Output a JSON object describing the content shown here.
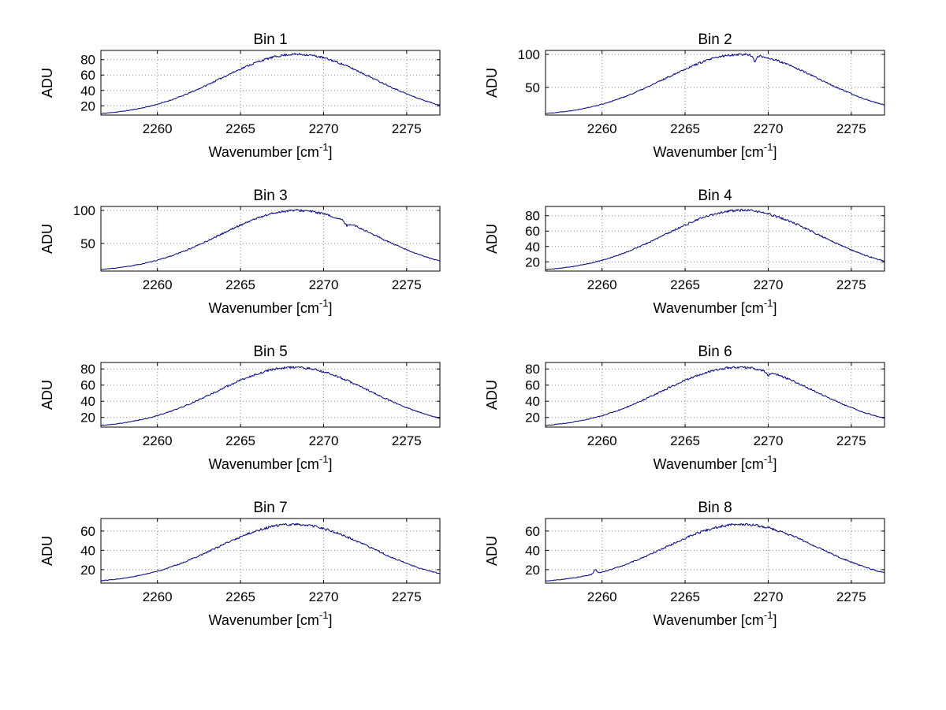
{
  "figure": {
    "background": "#ffffff"
  },
  "labels": {
    "ylabel": "ADU",
    "xlabel_base": "Wavenumber [cm",
    "xlabel_exp": "-1",
    "xlabel_end": "]"
  },
  "style": {
    "curve_color": "#00007f",
    "grid_color": "#888888",
    "axis_color": "#000000",
    "background": "#ffffff"
  },
  "chart_data": [
    {
      "type": "line",
      "title": "Bin 1",
      "xlabel": "Wavenumber [cm^-1]",
      "ylabel": "ADU",
      "x_range": [
        2256.6,
        2277.0
      ],
      "x_ticks": [
        2260,
        2265,
        2270,
        2275
      ],
      "y_ticks": [
        20,
        40,
        60,
        80
      ],
      "ylim": [
        8,
        92
      ],
      "grid": true,
      "curve": {
        "model": "gaussian",
        "center": 2268.4,
        "sigma": 4.6,
        "amplitude": 80,
        "baseline": 7,
        "noise": 1.5,
        "seed": 11
      },
      "spikes": []
    },
    {
      "type": "line",
      "title": "Bin 2",
      "xlabel": "Wavenumber [cm^-1]",
      "ylabel": "ADU",
      "x_range": [
        2256.6,
        2277.0
      ],
      "x_ticks": [
        2260,
        2265,
        2270,
        2275
      ],
      "y_ticks": [
        50,
        100
      ],
      "ylim": [
        8,
        106
      ],
      "grid": true,
      "curve": {
        "model": "gaussian",
        "center": 2268.4,
        "sigma": 4.6,
        "amplitude": 93,
        "baseline": 7,
        "noise": 1.8,
        "seed": 22
      },
      "spikes": [
        {
          "x": 2269.2,
          "amp": -9
        }
      ]
    },
    {
      "type": "line",
      "title": "Bin 3",
      "xlabel": "Wavenumber [cm^-1]",
      "ylabel": "ADU",
      "x_range": [
        2256.6,
        2277.0
      ],
      "x_ticks": [
        2260,
        2265,
        2270,
        2275
      ],
      "y_ticks": [
        50,
        100
      ],
      "ylim": [
        8,
        106
      ],
      "grid": true,
      "curve": {
        "model": "gaussian",
        "center": 2268.4,
        "sigma": 4.6,
        "amplitude": 93,
        "baseline": 7,
        "noise": 1.8,
        "seed": 33
      },
      "spikes": [
        {
          "x": 2271.4,
          "amp": -5
        }
      ]
    },
    {
      "type": "line",
      "title": "Bin 4",
      "xlabel": "Wavenumber [cm^-1]",
      "ylabel": "ADU",
      "x_range": [
        2256.6,
        2277.0
      ],
      "x_ticks": [
        2260,
        2265,
        2270,
        2275
      ],
      "y_ticks": [
        20,
        40,
        60,
        80
      ],
      "ylim": [
        8,
        92
      ],
      "grid": true,
      "curve": {
        "model": "gaussian",
        "center": 2268.4,
        "sigma": 4.6,
        "amplitude": 80,
        "baseline": 7,
        "noise": 1.6,
        "seed": 44
      },
      "spikes": []
    },
    {
      "type": "line",
      "title": "Bin 5",
      "xlabel": "Wavenumber [cm^-1]",
      "ylabel": "ADU",
      "x_range": [
        2256.6,
        2277.0
      ],
      "x_ticks": [
        2260,
        2265,
        2270,
        2275
      ],
      "y_ticks": [
        20,
        40,
        60,
        80
      ],
      "ylim": [
        8,
        88
      ],
      "grid": true,
      "curve": {
        "model": "gaussian",
        "center": 2268.2,
        "sigma": 4.6,
        "amplitude": 75,
        "baseline": 7,
        "noise": 1.5,
        "seed": 55
      },
      "spikes": []
    },
    {
      "type": "line",
      "title": "Bin 6",
      "xlabel": "Wavenumber [cm^-1]",
      "ylabel": "ADU",
      "x_range": [
        2256.6,
        2277.0
      ],
      "x_ticks": [
        2260,
        2265,
        2270,
        2275
      ],
      "y_ticks": [
        20,
        40,
        60,
        80
      ],
      "ylim": [
        8,
        88
      ],
      "grid": true,
      "curve": {
        "model": "gaussian",
        "center": 2268.2,
        "sigma": 4.6,
        "amplitude": 75,
        "baseline": 7,
        "noise": 1.5,
        "seed": 66
      },
      "spikes": [
        {
          "x": 2270.0,
          "amp": -4
        }
      ]
    },
    {
      "type": "line",
      "title": "Bin 7",
      "xlabel": "Wavenumber [cm^-1]",
      "ylabel": "ADU",
      "x_range": [
        2256.6,
        2277.0
      ],
      "x_ticks": [
        2260,
        2265,
        2270,
        2275
      ],
      "y_ticks": [
        20,
        40,
        60
      ],
      "ylim": [
        6,
        73
      ],
      "grid": true,
      "curve": {
        "model": "gaussian",
        "center": 2268.2,
        "sigma": 4.6,
        "amplitude": 61,
        "baseline": 6,
        "noise": 1.4,
        "seed": 77
      },
      "spikes": []
    },
    {
      "type": "line",
      "title": "Bin 8",
      "xlabel": "Wavenumber [cm^-1]",
      "ylabel": "ADU",
      "x_range": [
        2256.6,
        2277.0
      ],
      "x_ticks": [
        2260,
        2265,
        2270,
        2275
      ],
      "y_ticks": [
        20,
        40,
        60
      ],
      "ylim": [
        6,
        73
      ],
      "grid": true,
      "curve": {
        "model": "gaussian",
        "center": 2268.4,
        "sigma": 4.6,
        "amplitude": 61,
        "baseline": 6,
        "noise": 1.4,
        "seed": 88
      },
      "spikes": [
        {
          "x": 2259.6,
          "amp": 4
        }
      ]
    }
  ]
}
